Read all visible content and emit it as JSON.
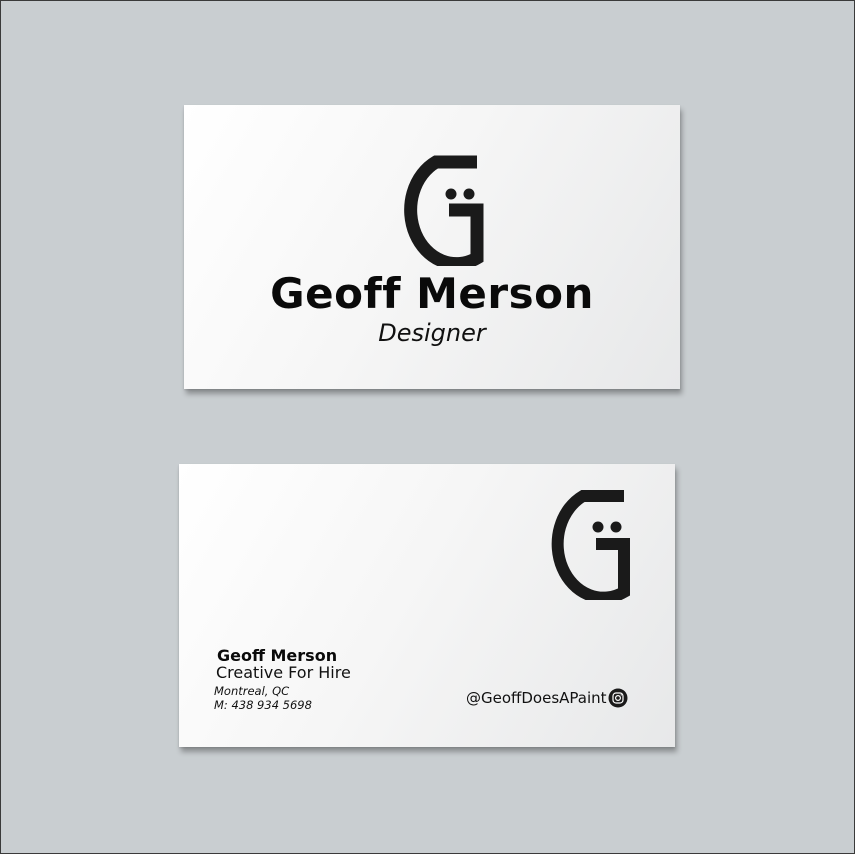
{
  "front": {
    "name": "Geoff Merson",
    "title": "Designer",
    "logo_icon": "smiley-g-logo-icon"
  },
  "back": {
    "name": "Geoff Merson",
    "tagline": "Creative For Hire",
    "location": "Montreal, QC",
    "phone": "M: 438 934 5698",
    "social_handle": "@GeoffDoesAPaint",
    "social_icon": "instagram-icon",
    "logo_icon": "smiley-g-logo-icon"
  },
  "colors": {
    "backdrop": "#c9ced1",
    "card": "#ffffff",
    "ink": "#1a1a1a"
  }
}
